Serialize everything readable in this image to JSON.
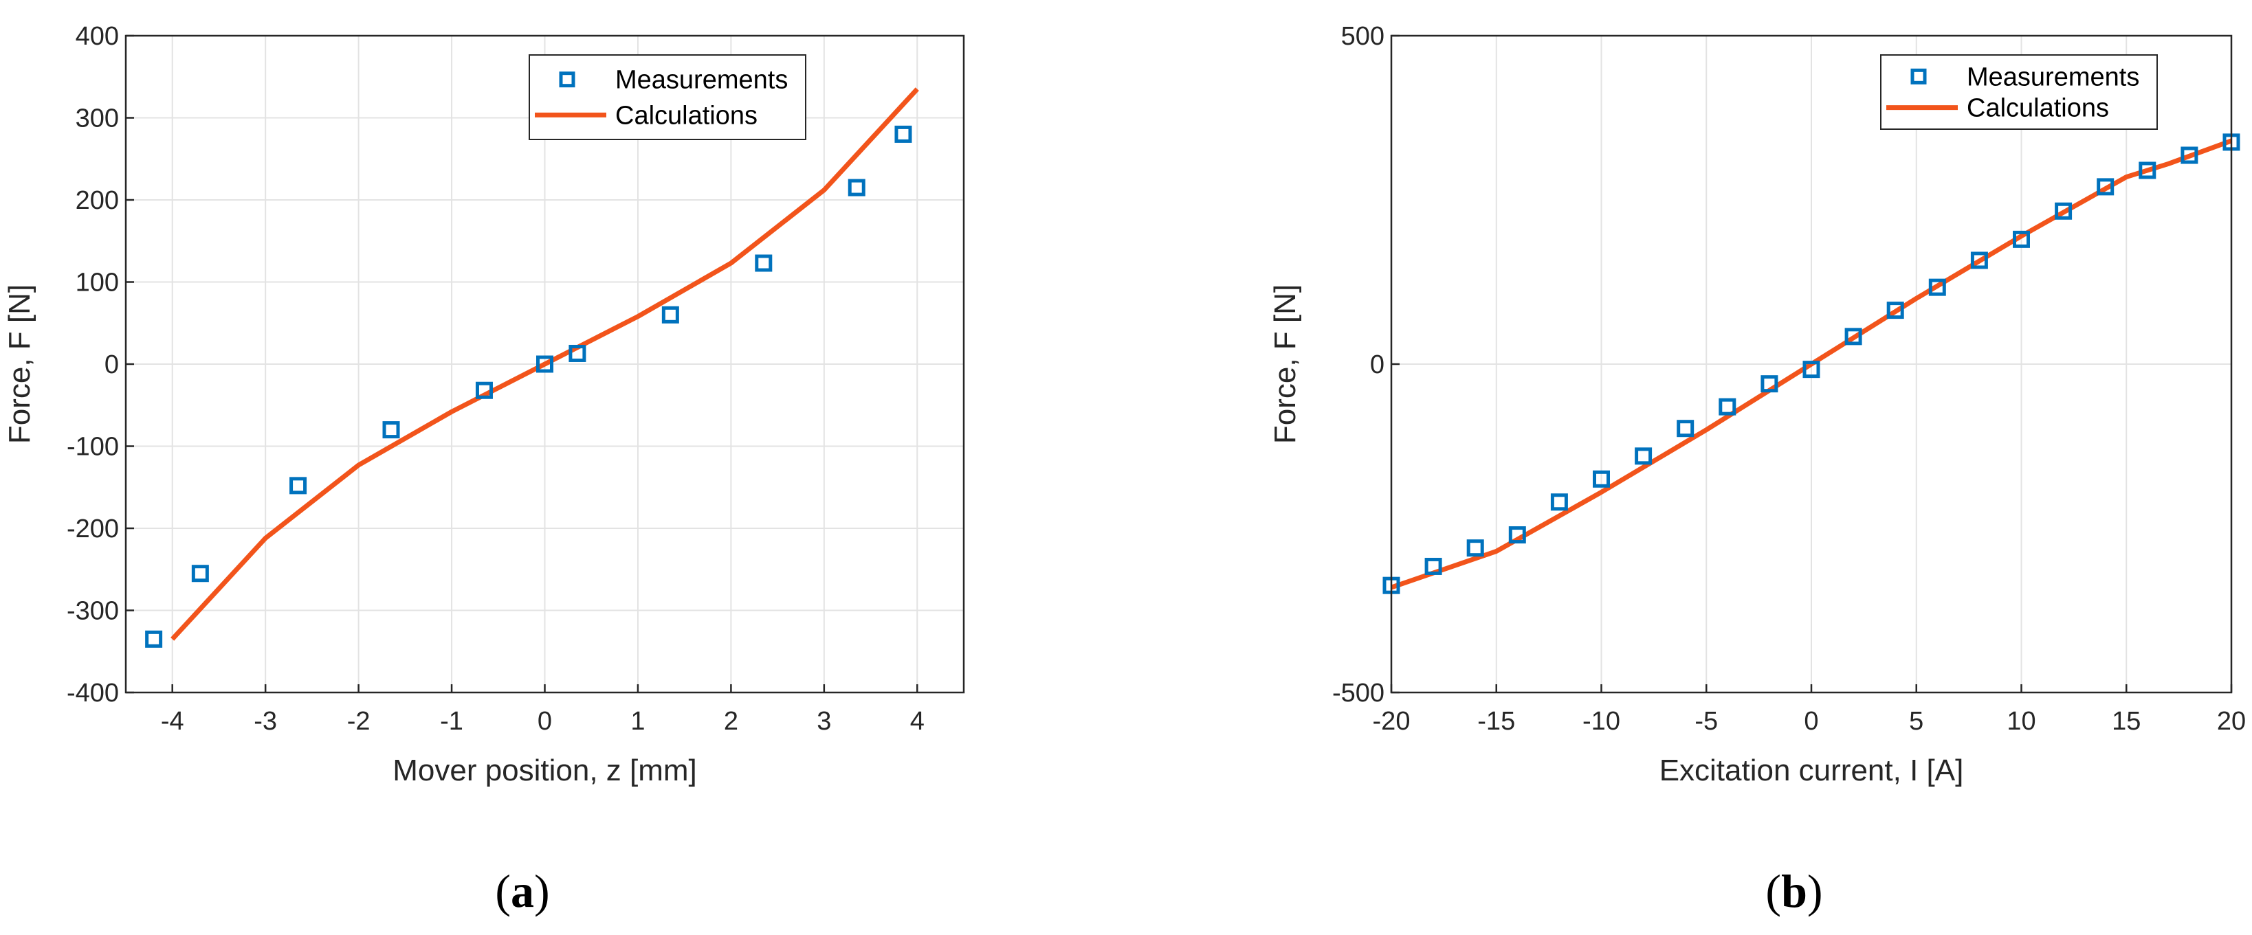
{
  "chart_data": [
    {
      "type": "line+scatter",
      "xlabel": "Mover position, z [mm]",
      "ylabel": "Force, F [N]",
      "xlim": [
        -4.5,
        4.5
      ],
      "ylim": [
        -400,
        400
      ],
      "xticks": [
        -4,
        -3,
        -2,
        -1,
        0,
        1,
        2,
        3,
        4
      ],
      "yticks": [
        -400,
        -300,
        -200,
        -100,
        0,
        100,
        200,
        300,
        400
      ],
      "grid": true,
      "legend_position": "top-right",
      "caption_letter": "a",
      "series": [
        {
          "name": "Measurements",
          "style": "square-markers",
          "color": "#0072BD",
          "x": [
            -4.2,
            -3.7,
            -2.65,
            -1.65,
            -0.65,
            0,
            0.35,
            1.35,
            2.35,
            3.35,
            3.85
          ],
          "y": [
            -335,
            -255,
            -148,
            -80,
            -32,
            0,
            13,
            60,
            123,
            215,
            280
          ]
        },
        {
          "name": "Calculations",
          "style": "line",
          "color": "#F2541B",
          "x": [
            -4,
            -3,
            -2,
            -1,
            0,
            1,
            2,
            3,
            4
          ],
          "y": [
            -335,
            -212,
            -123,
            -58,
            0,
            58,
            123,
            212,
            335
          ]
        }
      ]
    },
    {
      "type": "line+scatter",
      "xlabel": "Excitation current, I [A]",
      "ylabel": "Force, F [N]",
      "xlim": [
        -20,
        20
      ],
      "ylim": [
        -500,
        500
      ],
      "xticks": [
        -20,
        -15,
        -10,
        -5,
        0,
        5,
        10,
        15,
        20
      ],
      "yticks": [
        -500,
        0,
        500
      ],
      "grid": true,
      "legend_position": "top-right",
      "caption_letter": "b",
      "series": [
        {
          "name": "Measurements",
          "style": "square-markers",
          "color": "#0072BD",
          "x": [
            -20,
            -18,
            -16,
            -14,
            -12,
            -10,
            -8,
            -6,
            -4,
            -2,
            0,
            2,
            4,
            6,
            8,
            10,
            12,
            14,
            16,
            18,
            20
          ],
          "y": [
            -337,
            -308,
            -280,
            -260,
            -210,
            -175,
            -140,
            -98,
            -65,
            -30,
            -8,
            42,
            82,
            117,
            158,
            190,
            233,
            270,
            295,
            318,
            338
          ],
          "y_note": "values read from vertical position"
        },
        {
          "name": "Calculations",
          "style": "line",
          "color": "#F2541B",
          "x": [
            -20,
            -15,
            -10,
            -5,
            0,
            5,
            10,
            15,
            17,
            20
          ],
          "y": [
            -340,
            -285,
            -195,
            -100,
            0,
            100,
            195,
            285,
            305,
            340
          ]
        }
      ]
    }
  ]
}
